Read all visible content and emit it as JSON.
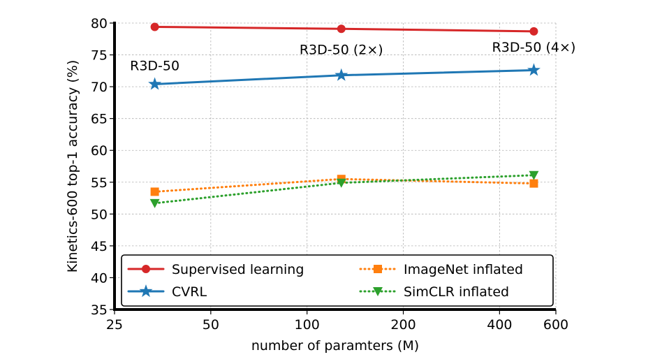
{
  "chart_data": {
    "type": "line",
    "title": "",
    "xlabel": "number of paramters (M)",
    "ylabel": "Kinetics-600 top-1 accuracy (%)",
    "xscale": "log",
    "xlim": [
      25,
      600
    ],
    "ylim": [
      35,
      80
    ],
    "x_ticks": [
      25,
      50,
      100,
      200,
      400,
      600
    ],
    "x_tick_labels": [
      "25",
      "50",
      "100",
      "200",
      "400",
      "600"
    ],
    "y_ticks": [
      35,
      40,
      45,
      50,
      55,
      60,
      65,
      70,
      75,
      80
    ],
    "y_tick_labels": [
      "35",
      "40",
      "45",
      "50",
      "55",
      "60",
      "65",
      "70",
      "75",
      "80"
    ],
    "grid": true,
    "legend_position": "bottom",
    "x": [
      33.4,
      128,
      512
    ],
    "series": [
      {
        "name": "Supervised learning",
        "values": [
          79.4,
          79.1,
          78.7
        ],
        "color": "#d62728",
        "linestyle": "solid",
        "marker": "circle"
      },
      {
        "name": "CVRL",
        "values": [
          70.4,
          71.8,
          72.6
        ],
        "color": "#1f77b4",
        "linestyle": "solid",
        "marker": "star"
      },
      {
        "name": "ImageNet inflated",
        "values": [
          53.5,
          55.5,
          54.8
        ],
        "color": "#ff7f0e",
        "linestyle": "dotted",
        "marker": "square"
      },
      {
        "name": "SimCLR inflated",
        "values": [
          51.7,
          54.9,
          56.1
        ],
        "color": "#2ca02c",
        "linestyle": "dotted",
        "marker": "triangle-down"
      }
    ],
    "annotations": [
      {
        "text": "R3D-50",
        "x": 33.4,
        "y": 72.6
      },
      {
        "text": "R3D-50 (2×)",
        "x": 128,
        "y": 75.1
      },
      {
        "text": "R3D-50 (4×)",
        "x": 512,
        "y": 75.5
      }
    ]
  }
}
